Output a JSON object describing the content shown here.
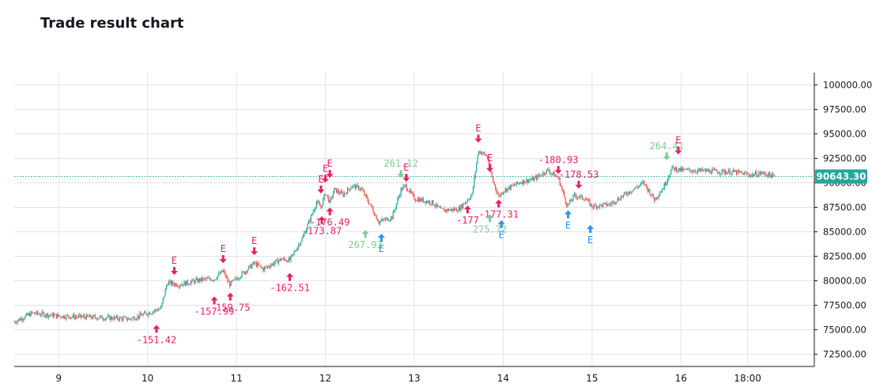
{
  "chart_data": {
    "type": "candlestick",
    "title": "Trade result chart",
    "x_ticks": [
      {
        "label": "9",
        "day": 9
      },
      {
        "label": "10",
        "day": 10
      },
      {
        "label": "11",
        "day": 11
      },
      {
        "label": "12",
        "day": 12
      },
      {
        "label": "13",
        "day": 13
      },
      {
        "label": "14",
        "day": 14
      },
      {
        "label": "15",
        "day": 15
      },
      {
        "label": "16",
        "day": 16
      },
      {
        "label": "18:00",
        "day": 16.75
      }
    ],
    "x_range": [
      8.5,
      17.5
    ],
    "y_ticks": [
      "100000.00",
      "97500.00",
      "95000.00",
      "92500.00",
      "90000.00",
      "87500.00",
      "85000.00",
      "82500.00",
      "80000.00",
      "77500.00",
      "75000.00",
      "72500.00"
    ],
    "ylim": [
      71250,
      101250
    ],
    "last_price": 90643.3,
    "last_price_label": "90643.30",
    "colors": {
      "up": "#26a69a",
      "down": "#ef5350",
      "loss": "#e91e63",
      "win": "#81c995",
      "entry": "#2196f3",
      "price_line": "#26a69a",
      "grid": "#e0e3eb"
    },
    "price_path": [
      [
        8.5,
        75800
      ],
      [
        8.7,
        76700
      ],
      [
        9.0,
        76400
      ],
      [
        9.3,
        76300
      ],
      [
        9.6,
        76200
      ],
      [
        9.8,
        76100
      ],
      [
        10.0,
        76700
      ],
      [
        10.15,
        77200
      ],
      [
        10.22,
        79800
      ],
      [
        10.35,
        79600
      ],
      [
        10.6,
        80100
      ],
      [
        10.75,
        80200
      ],
      [
        10.85,
        81000
      ],
      [
        10.92,
        79600
      ],
      [
        11.05,
        80600
      ],
      [
        11.2,
        81800
      ],
      [
        11.3,
        81200
      ],
      [
        11.5,
        82200
      ],
      [
        11.6,
        82100
      ],
      [
        11.75,
        84500
      ],
      [
        11.9,
        88000
      ],
      [
        11.95,
        87500
      ],
      [
        12.0,
        89000
      ],
      [
        12.05,
        88000
      ],
      [
        12.1,
        89300
      ],
      [
        12.2,
        88800
      ],
      [
        12.3,
        89700
      ],
      [
        12.4,
        89400
      ],
      [
        12.5,
        87800
      ],
      [
        12.6,
        86000
      ],
      [
        12.75,
        86500
      ],
      [
        12.85,
        89300
      ],
      [
        12.9,
        89700
      ],
      [
        13.0,
        88400
      ],
      [
        13.2,
        88000
      ],
      [
        13.3,
        87200
      ],
      [
        13.5,
        87300
      ],
      [
        13.65,
        88800
      ],
      [
        13.72,
        93300
      ],
      [
        13.82,
        92700
      ],
      [
        13.88,
        90300
      ],
      [
        13.95,
        88600
      ],
      [
        14.0,
        89200
      ],
      [
        14.2,
        90100
      ],
      [
        14.35,
        90400
      ],
      [
        14.5,
        91300
      ],
      [
        14.62,
        90500
      ],
      [
        14.72,
        87600
      ],
      [
        14.8,
        88700
      ],
      [
        14.92,
        88400
      ],
      [
        15.0,
        87600
      ],
      [
        15.2,
        87800
      ],
      [
        15.4,
        89000
      ],
      [
        15.58,
        90000
      ],
      [
        15.7,
        88300
      ],
      [
        15.8,
        89500
      ],
      [
        15.9,
        91500
      ],
      [
        16.0,
        91300
      ],
      [
        16.3,
        91200
      ],
      [
        16.6,
        91100
      ],
      [
        16.8,
        90800
      ],
      [
        16.9,
        91000
      ],
      [
        17.0,
        90800
      ],
      [
        17.05,
        90600
      ]
    ],
    "annotations": [
      {
        "day": 10.1,
        "price": 76300,
        "dir": "up",
        "arrow": "loss",
        "text": "-151.42",
        "text_kind": "loss",
        "text_pos": "below"
      },
      {
        "day": 10.3,
        "price": 79800,
        "dir": "down",
        "arrow": "loss",
        "text": "E",
        "text_kind": "loss",
        "text_pos": "above"
      },
      {
        "day": 10.75,
        "price": 79200,
        "dir": "up",
        "arrow": "loss",
        "text": "-157.99",
        "text_kind": "loss",
        "text_pos": "below"
      },
      {
        "day": 10.85,
        "price": 81000,
        "dir": "down",
        "arrow": "loss",
        "text": "E",
        "text_kind": "loss",
        "text_pos": "above"
      },
      {
        "day": 10.93,
        "price": 79600,
        "dir": "up",
        "arrow": "loss",
        "text": "-159.75",
        "text_kind": "loss",
        "text_pos": "below"
      },
      {
        "day": 11.2,
        "price": 81800,
        "dir": "down",
        "arrow": "loss",
        "text": "E",
        "text_kind": "loss",
        "text_pos": "above"
      },
      {
        "day": 11.6,
        "price": 81600,
        "dir": "up",
        "arrow": "loss",
        "text": "-162.51",
        "text_kind": "loss",
        "text_pos": "below"
      },
      {
        "day": 11.95,
        "price": 88100,
        "dir": "down",
        "arrow": "loss",
        "text": "E",
        "text_kind": "loss",
        "text_pos": "above"
      },
      {
        "day": 11.96,
        "price": 87400,
        "dir": "up",
        "arrow": "loss",
        "text": "-173.87",
        "text_kind": "loss",
        "text_pos": "below"
      },
      {
        "day": 12.0,
        "price": 89200,
        "dir": "down",
        "arrow": "loss",
        "text": "E",
        "text_kind": "loss",
        "text_pos": "above"
      },
      {
        "day": 12.05,
        "price": 88300,
        "dir": "up",
        "arrow": "loss",
        "text": "-176.49",
        "text_kind": "loss",
        "text_pos": "below"
      },
      {
        "day": 12.05,
        "price": 89700,
        "dir": "down",
        "arrow": "loss",
        "text": "E",
        "text_kind": "loss",
        "text_pos": "above"
      },
      {
        "day": 12.45,
        "price": 86000,
        "dir": "up",
        "arrow": "win",
        "text": "267.93",
        "text_kind": "win",
        "text_pos": "below"
      },
      {
        "day": 12.63,
        "price": 85600,
        "dir": "up",
        "arrow": "entry",
        "text": "E",
        "text_kind": "entry",
        "text_pos": "below"
      },
      {
        "day": 12.85,
        "price": 89700,
        "dir": "down",
        "arrow": "win",
        "text": "261.12",
        "text_kind": "win",
        "text_pos": "above"
      },
      {
        "day": 12.91,
        "price": 89300,
        "dir": "down",
        "arrow": "loss",
        "text": "E",
        "text_kind": "loss",
        "text_pos": "above"
      },
      {
        "day": 13.6,
        "price": 88500,
        "dir": "up",
        "arrow": "loss",
        "text": "-177",
        "text_kind": "loss",
        "text_pos": "below"
      },
      {
        "day": 13.72,
        "price": 93300,
        "dir": "down",
        "arrow": "loss",
        "text": "E",
        "text_kind": "loss",
        "text_pos": "above"
      },
      {
        "day": 13.85,
        "price": 90300,
        "dir": "down",
        "arrow": "loss",
        "text": "E",
        "text_kind": "loss",
        "text_pos": "above"
      },
      {
        "day": 13.95,
        "price": 89100,
        "dir": "up",
        "arrow": "loss",
        "text": "-177.31",
        "text_kind": "loss",
        "text_pos": "below"
      },
      {
        "day": 13.85,
        "price": 87600,
        "dir": "up",
        "arrow": "win",
        "text": "275.72",
        "text_kind": "win",
        "text_pos": "below"
      },
      {
        "day": 13.98,
        "price": 87000,
        "dir": "up",
        "arrow": "entry",
        "text": "E",
        "text_kind": "entry",
        "text_pos": "below"
      },
      {
        "day": 14.62,
        "price": 90100,
        "dir": "down",
        "arrow": "loss",
        "text": "-180.93",
        "text_kind": "loss",
        "text_pos": "above"
      },
      {
        "day": 14.85,
        "price": 88600,
        "dir": "down",
        "arrow": "loss",
        "text": "-178.53",
        "text_kind": "loss",
        "text_pos": "above"
      },
      {
        "day": 14.73,
        "price": 88000,
        "dir": "up",
        "arrow": "entry",
        "text": "E",
        "text_kind": "entry",
        "text_pos": "below"
      },
      {
        "day": 14.98,
        "price": 86500,
        "dir": "up",
        "arrow": "entry",
        "text": "E",
        "text_kind": "entry",
        "text_pos": "below"
      },
      {
        "day": 15.84,
        "price": 91500,
        "dir": "down",
        "arrow": "win",
        "text": "264.41",
        "text_kind": "win",
        "text_pos": "above"
      },
      {
        "day": 15.97,
        "price": 92100,
        "dir": "down",
        "arrow": "loss",
        "text": "E",
        "text_kind": "loss",
        "text_pos": "above"
      }
    ]
  }
}
